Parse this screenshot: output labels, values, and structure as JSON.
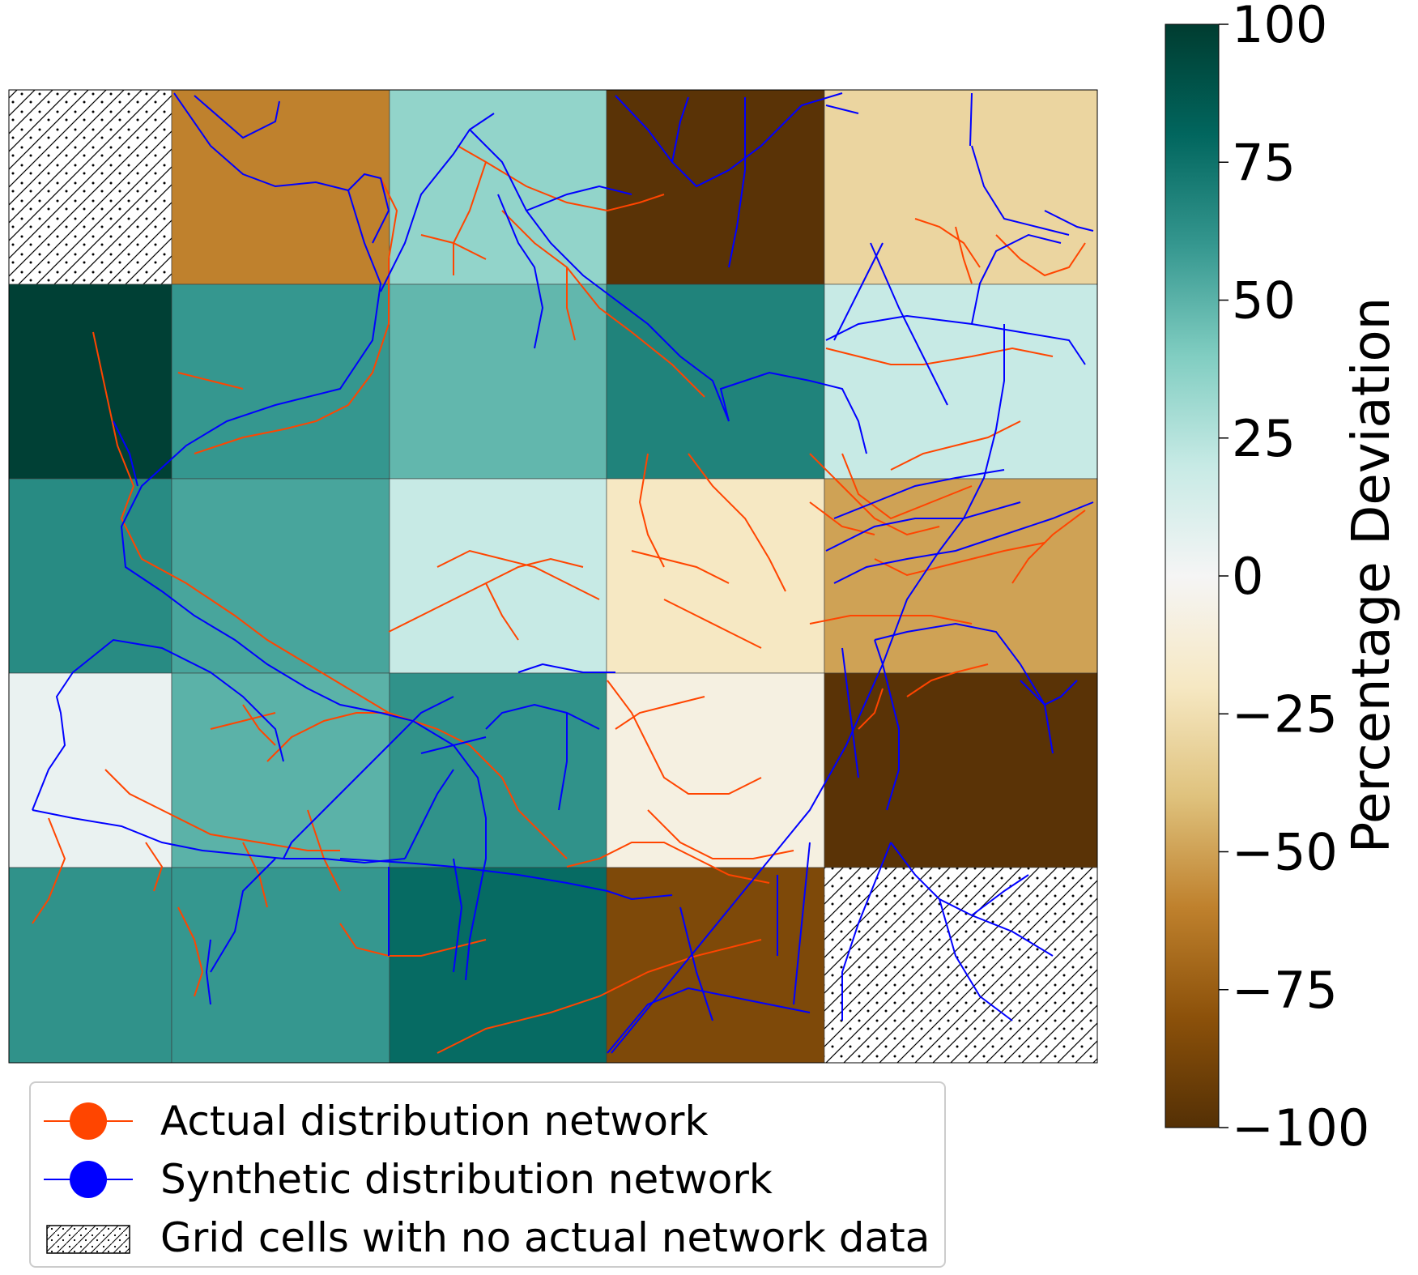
{
  "colorbar": {
    "label": "Percentage Deviation",
    "min": -100,
    "max": 100,
    "ticks": [
      "100",
      "75",
      "50",
      "25",
      "0",
      "−25",
      "−50",
      "−75",
      "−100"
    ],
    "tick_values": [
      100,
      75,
      50,
      25,
      0,
      -25,
      -50,
      -75,
      -100
    ],
    "colormap": "BrBG",
    "stops": [
      "#543005",
      "#8c510a",
      "#bf812d",
      "#dfc27d",
      "#f6e8c3",
      "#f5f5f5",
      "#c7eae5",
      "#80cdc1",
      "#35978f",
      "#01665e",
      "#003c30"
    ]
  },
  "grid": {
    "rows": 5,
    "cols": 5,
    "cells": [
      [
        {
          "deviation": null,
          "no_data": true
        },
        {
          "deviation": -60
        },
        {
          "deviation": 35
        },
        {
          "deviation": -98
        },
        {
          "deviation": -30
        }
      ],
      [
        {
          "deviation": 98
        },
        {
          "deviation": 60
        },
        {
          "deviation": 48
        },
        {
          "deviation": 68
        },
        {
          "deviation": 20
        }
      ],
      [
        {
          "deviation": 65
        },
        {
          "deviation": 55
        },
        {
          "deviation": 20
        },
        {
          "deviation": -20
        },
        {
          "deviation": -50
        }
      ],
      [
        {
          "deviation": 5
        },
        {
          "deviation": 50
        },
        {
          "deviation": 62
        },
        {
          "deviation": -8
        },
        {
          "deviation": -98
        }
      ],
      [
        {
          "deviation": 62
        },
        {
          "deviation": 60
        },
        {
          "deviation": 78
        },
        {
          "deviation": -85
        },
        {
          "deviation": null,
          "no_data": true
        }
      ]
    ]
  },
  "legend": {
    "items": [
      {
        "label": "Actual distribution network",
        "color": "#ff4500",
        "kind": "line-marker"
      },
      {
        "label": "Synthetic distribution network",
        "color": "#0000ff",
        "kind": "line-marker"
      },
      {
        "label": "Grid cells with no actual network data",
        "kind": "hatch"
      }
    ]
  },
  "colors": {
    "actual_network": "#ff4500",
    "synthetic_network": "#0000ff"
  }
}
